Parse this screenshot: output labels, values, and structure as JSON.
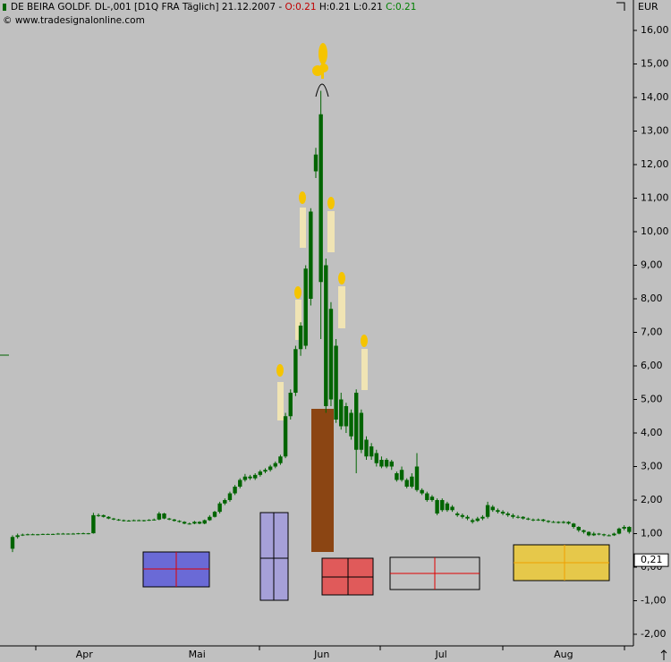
{
  "chart_data": {
    "type": "candlestick",
    "header": {
      "instrument": "DE BEIRA GOLDF.   DL-,001 [D1Q FRA  Täglich]",
      "date": "21.12.2007",
      "sep": "-",
      "open": "O:0.21",
      "high": "H:0.21",
      "low": "L:0.21",
      "close": "C:0.21"
    },
    "copyright": "© www.tradesignalonline.com",
    "y_unit": "EUR",
    "color": "#006400",
    "ylim": [
      -2,
      16
    ],
    "yticks": [
      {
        "value": 16,
        "label": "16,00"
      },
      {
        "value": 15,
        "label": "15,00"
      },
      {
        "value": 14,
        "label": "14,00"
      },
      {
        "value": 13,
        "label": "13,00"
      },
      {
        "value": 12,
        "label": "12,00"
      },
      {
        "value": 11,
        "label": "11,00"
      },
      {
        "value": 10,
        "label": "10,00"
      },
      {
        "value": 9,
        "label": "9,00"
      },
      {
        "value": 8,
        "label": "8,00"
      },
      {
        "value": 7,
        "label": "7,00"
      },
      {
        "value": 6,
        "label": "6,00"
      },
      {
        "value": 5,
        "label": "5,00"
      },
      {
        "value": 4,
        "label": "4,00"
      },
      {
        "value": 3,
        "label": "3,00"
      },
      {
        "value": 2,
        "label": "2,00"
      },
      {
        "value": 1,
        "label": "1,00"
      },
      {
        "value": 0,
        "label": "0,00"
      },
      {
        "value": -1,
        "label": "-1,00"
      },
      {
        "value": -2,
        "label": "-2,00"
      }
    ],
    "last_price": {
      "value": 0.21,
      "label": "0,21"
    },
    "xticks": [
      {
        "value": 14.2,
        "label": "Apr"
      },
      {
        "value": 36.5,
        "label": "Mai"
      },
      {
        "value": 61.2,
        "label": "Jun"
      },
      {
        "value": 84.8,
        "label": "Jul"
      },
      {
        "value": 109,
        "label": "Aug"
      }
    ],
    "ohlc": [
      [
        0.55,
        0.95,
        0.45,
        0.9
      ],
      [
        0.9,
        1.0,
        0.85,
        0.95
      ],
      [
        0.95,
        1.0,
        0.93,
        0.97
      ],
      [
        0.97,
        1.0,
        0.95,
        0.98
      ],
      [
        0.98,
        1.0,
        0.96,
        0.97
      ],
      [
        0.97,
        0.99,
        0.95,
        0.98
      ],
      [
        0.98,
        1.0,
        0.96,
        0.99
      ],
      [
        0.99,
        1.0,
        0.97,
        0.98
      ],
      [
        0.98,
        1.0,
        0.96,
        0.99
      ],
      [
        0.99,
        1.02,
        0.97,
        1.0
      ],
      [
        1.0,
        1.02,
        0.98,
        0.99
      ],
      [
        0.99,
        1.01,
        0.97,
        1.0
      ],
      [
        1.0,
        1.02,
        0.98,
        1.0
      ],
      [
        1.0,
        1.02,
        0.98,
        1.01
      ],
      [
        1.01,
        1.03,
        0.99,
        1.0
      ],
      [
        1.0,
        1.02,
        0.98,
        1.01
      ],
      [
        1.01,
        1.62,
        1.0,
        1.55
      ],
      [
        1.55,
        1.6,
        1.5,
        1.55
      ],
      [
        1.55,
        1.57,
        1.48,
        1.5
      ],
      [
        1.5,
        1.52,
        1.43,
        1.45
      ],
      [
        1.45,
        1.47,
        1.4,
        1.42
      ],
      [
        1.42,
        1.44,
        1.38,
        1.4
      ],
      [
        1.4,
        1.42,
        1.36,
        1.38
      ],
      [
        1.38,
        1.41,
        1.36,
        1.39
      ],
      [
        1.39,
        1.42,
        1.37,
        1.4
      ],
      [
        1.4,
        1.42,
        1.37,
        1.38
      ],
      [
        1.38,
        1.41,
        1.36,
        1.4
      ],
      [
        1.4,
        1.43,
        1.38,
        1.41
      ],
      [
        1.41,
        1.45,
        1.39,
        1.42
      ],
      [
        1.42,
        1.65,
        1.4,
        1.6
      ],
      [
        1.6,
        1.62,
        1.43,
        1.45
      ],
      [
        1.45,
        1.47,
        1.4,
        1.42
      ],
      [
        1.42,
        1.44,
        1.36,
        1.38
      ],
      [
        1.38,
        1.4,
        1.33,
        1.35
      ],
      [
        1.35,
        1.37,
        1.28,
        1.3
      ],
      [
        1.3,
        1.33,
        1.27,
        1.3
      ],
      [
        1.3,
        1.38,
        1.28,
        1.35
      ],
      [
        1.35,
        1.37,
        1.28,
        1.3
      ],
      [
        1.3,
        1.42,
        1.28,
        1.4
      ],
      [
        1.4,
        1.55,
        1.38,
        1.5
      ],
      [
        1.5,
        1.68,
        1.48,
        1.65
      ],
      [
        1.65,
        1.95,
        1.6,
        1.9
      ],
      [
        1.9,
        2.05,
        1.85,
        2.0
      ],
      [
        2.0,
        2.25,
        1.95,
        2.2
      ],
      [
        2.2,
        2.45,
        2.15,
        2.4
      ],
      [
        2.4,
        2.65,
        2.35,
        2.6
      ],
      [
        2.6,
        2.78,
        2.55,
        2.7
      ],
      [
        2.7,
        2.75,
        2.6,
        2.65
      ],
      [
        2.65,
        2.8,
        2.6,
        2.75
      ],
      [
        2.75,
        2.9,
        2.7,
        2.85
      ],
      [
        2.85,
        2.95,
        2.8,
        2.9
      ],
      [
        2.9,
        3.05,
        2.85,
        3.0
      ],
      [
        3.0,
        3.15,
        2.95,
        3.1
      ],
      [
        3.1,
        3.35,
        3.05,
        3.3
      ],
      [
        3.3,
        4.6,
        3.25,
        4.5
      ],
      [
        4.5,
        5.3,
        4.4,
        5.2
      ],
      [
        5.2,
        6.6,
        5.1,
        6.5
      ],
      [
        6.5,
        7.3,
        6.3,
        7.2
      ],
      [
        6.6,
        9.0,
        6.5,
        8.9
      ],
      [
        8.0,
        10.7,
        7.8,
        10.6
      ],
      [
        11.8,
        12.5,
        11.6,
        12.3
      ],
      [
        8.5,
        14.2,
        6.8,
        13.5
      ],
      [
        9.0,
        9.2,
        4.6,
        4.8
      ],
      [
        7.7,
        7.9,
        4.8,
        5.0
      ],
      [
        6.6,
        6.8,
        4.3,
        4.4
      ],
      [
        5.0,
        5.2,
        4.1,
        4.2
      ],
      [
        4.2,
        4.9,
        4.0,
        4.8
      ],
      [
        4.6,
        4.7,
        3.8,
        3.9
      ],
      [
        3.5,
        5.3,
        2.8,
        5.2
      ],
      [
        4.6,
        4.7,
        3.4,
        3.5
      ],
      [
        3.8,
        3.9,
        3.2,
        3.3
      ],
      [
        3.3,
        3.7,
        3.2,
        3.6
      ],
      [
        3.4,
        3.5,
        3.0,
        3.1
      ],
      [
        3.0,
        3.3,
        2.95,
        3.2
      ],
      [
        3.2,
        3.25,
        2.95,
        3.0
      ],
      [
        3.0,
        3.2,
        2.9,
        3.15
      ],
      [
        2.8,
        2.85,
        2.55,
        2.6
      ],
      [
        2.6,
        3.0,
        2.55,
        2.9
      ],
      [
        2.6,
        2.65,
        2.35,
        2.4
      ],
      [
        2.4,
        2.8,
        2.35,
        2.7
      ],
      [
        3.0,
        3.4,
        2.25,
        2.3
      ],
      [
        2.3,
        2.35,
        2.15,
        2.2
      ],
      [
        2.2,
        2.25,
        1.95,
        2.0
      ],
      [
        2.0,
        2.15,
        1.95,
        2.1
      ],
      [
        2.0,
        2.05,
        1.55,
        1.6
      ],
      [
        1.7,
        2.05,
        1.65,
        2.0
      ],
      [
        1.9,
        1.95,
        1.65,
        1.7
      ],
      [
        1.7,
        1.85,
        1.65,
        1.8
      ],
      [
        1.6,
        1.65,
        1.5,
        1.55
      ],
      [
        1.55,
        1.6,
        1.45,
        1.5
      ],
      [
        1.45,
        1.55,
        1.4,
        1.5
      ],
      [
        1.4,
        1.45,
        1.3,
        1.35
      ],
      [
        1.38,
        1.5,
        1.35,
        1.45
      ],
      [
        1.5,
        1.55,
        1.4,
        1.45
      ],
      [
        1.5,
        1.95,
        1.45,
        1.85
      ],
      [
        1.8,
        1.85,
        1.65,
        1.7
      ],
      [
        1.7,
        1.75,
        1.6,
        1.65
      ],
      [
        1.65,
        1.7,
        1.55,
        1.6
      ],
      [
        1.6,
        1.65,
        1.5,
        1.55
      ],
      [
        1.55,
        1.6,
        1.45,
        1.5
      ],
      [
        1.5,
        1.55,
        1.45,
        1.5
      ],
      [
        1.5,
        1.52,
        1.42,
        1.45
      ],
      [
        1.45,
        1.48,
        1.4,
        1.42
      ],
      [
        1.42,
        1.45,
        1.37,
        1.4
      ],
      [
        1.4,
        1.45,
        1.38,
        1.42
      ],
      [
        1.42,
        1.44,
        1.35,
        1.38
      ],
      [
        1.38,
        1.4,
        1.32,
        1.35
      ],
      [
        1.35,
        1.38,
        1.32,
        1.35
      ],
      [
        1.35,
        1.37,
        1.3,
        1.32
      ],
      [
        1.32,
        1.38,
        1.3,
        1.35
      ],
      [
        1.35,
        1.37,
        1.27,
        1.3
      ],
      [
        1.3,
        1.32,
        1.15,
        1.2
      ],
      [
        1.2,
        1.22,
        1.05,
        1.1
      ],
      [
        1.1,
        1.12,
        1.0,
        1.05
      ],
      [
        1.05,
        1.07,
        0.92,
        0.95
      ],
      [
        0.95,
        1.05,
        0.93,
        1.0
      ],
      [
        1.0,
        1.02,
        0.95,
        0.98
      ],
      [
        0.98,
        1.0,
        0.92,
        0.95
      ],
      [
        0.95,
        0.98,
        0.92,
        0.95
      ],
      [
        0.95,
        1.03,
        0.93,
        1.0
      ],
      [
        1.0,
        1.18,
        0.98,
        1.15
      ],
      [
        1.15,
        1.25,
        1.1,
        1.2
      ],
      [
        1.2,
        1.22,
        1.0,
        1.05
      ]
    ]
  }
}
